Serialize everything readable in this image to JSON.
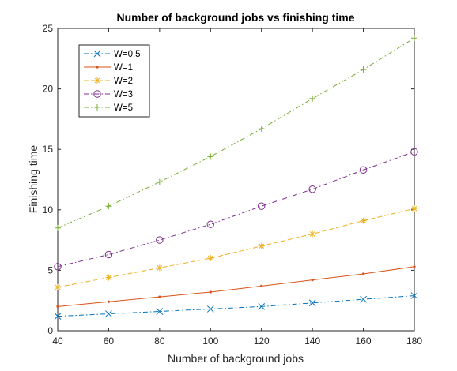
{
  "chart_data": {
    "type": "line",
    "title": "Number of background jobs vs finishing time",
    "xlabel": "Number of background jobs",
    "ylabel": "Finishing time",
    "xlim": [
      40,
      180
    ],
    "ylim": [
      0,
      25
    ],
    "xticks": [
      "40",
      "60",
      "80",
      "100",
      "120",
      "140",
      "160",
      "180"
    ],
    "yticks": [
      "0",
      "5",
      "10",
      "15",
      "20",
      "25"
    ],
    "grid": false,
    "legend_position": "top-left",
    "x": [
      40,
      60,
      80,
      100,
      120,
      140,
      160,
      180
    ],
    "series": [
      {
        "name": "W=0.5",
        "color": "#0072BD",
        "line_style": "dash-dot",
        "marker": "x",
        "values": [
          1.2,
          1.4,
          1.6,
          1.8,
          2.0,
          2.3,
          2.6,
          2.9
        ]
      },
      {
        "name": "W=1",
        "color": "#D95319",
        "line_style": "solid",
        "marker": "point",
        "values": [
          2.0,
          2.4,
          2.8,
          3.2,
          3.7,
          4.2,
          4.7,
          5.3
        ]
      },
      {
        "name": "W=2",
        "color": "#EDB120",
        "line_style": "dashed",
        "marker": "asterisk",
        "values": [
          3.6,
          4.4,
          5.2,
          6.0,
          7.0,
          8.0,
          9.1,
          10.1
        ]
      },
      {
        "name": "W=3",
        "color": "#7E2F8E",
        "line_style": "dash-dot",
        "marker": "circle",
        "values": [
          5.3,
          6.3,
          7.5,
          8.8,
          10.3,
          11.7,
          13.3,
          14.8
        ]
      },
      {
        "name": "W=5",
        "color": "#77AC30",
        "line_style": "dash-dot",
        "marker": "plus",
        "values": [
          8.5,
          10.3,
          12.3,
          14.4,
          16.7,
          19.2,
          21.6,
          24.2
        ]
      }
    ]
  }
}
